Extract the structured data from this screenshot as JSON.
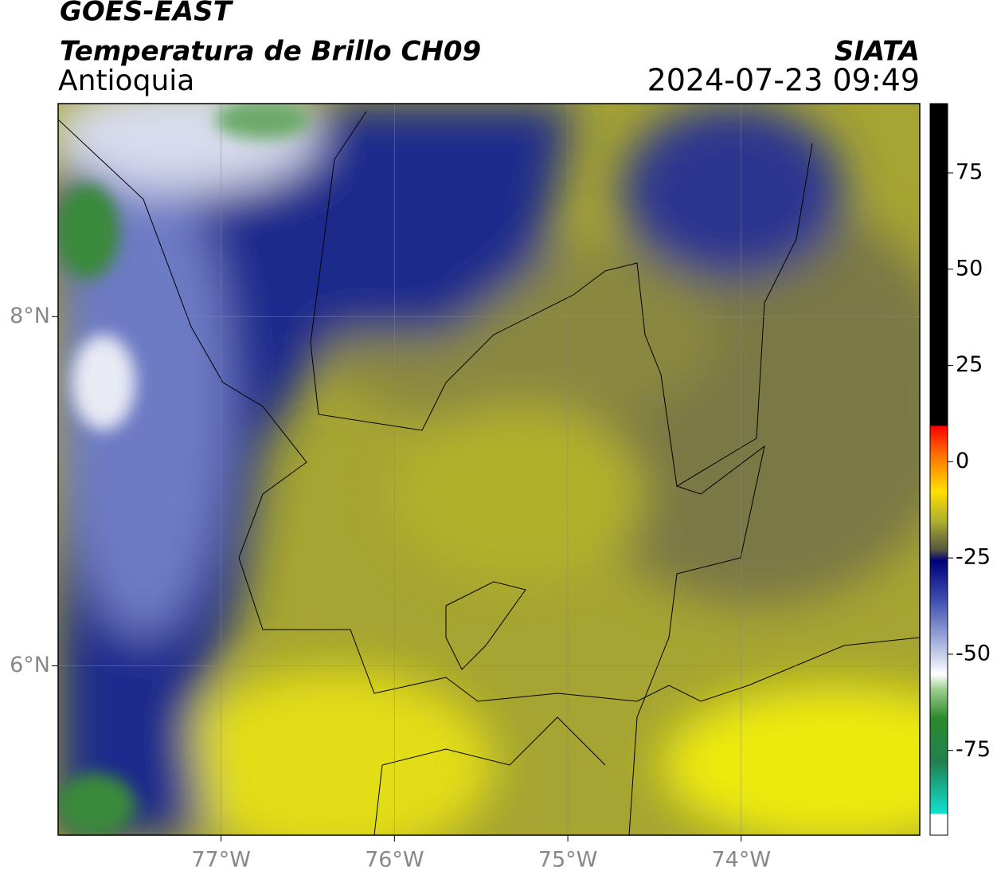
{
  "header": {
    "title": "GOES-EAST",
    "subtitle": "Temperatura de Brillo CH09",
    "region": "Antioquia",
    "source": "SIATA",
    "datetime": "2024-07-23 09:49"
  },
  "map": {
    "lonlim": [
      -77.94,
      -72.97
    ],
    "latlim": [
      5.03,
      9.22
    ],
    "lon_ticks": [
      {
        "value": -77,
        "label": "77°W"
      },
      {
        "value": -76,
        "label": "76°W"
      },
      {
        "value": -75,
        "label": "75°W"
      },
      {
        "value": -74,
        "label": "74°W"
      }
    ],
    "lat_ticks": [
      {
        "value": 8,
        "label": "8°N"
      },
      {
        "value": 6,
        "label": "6°N"
      }
    ]
  },
  "colorbar": {
    "lim": [
      -97,
      93
    ],
    "ticks": [
      75,
      50,
      25,
      0,
      -25,
      -50,
      -75
    ]
  }
}
